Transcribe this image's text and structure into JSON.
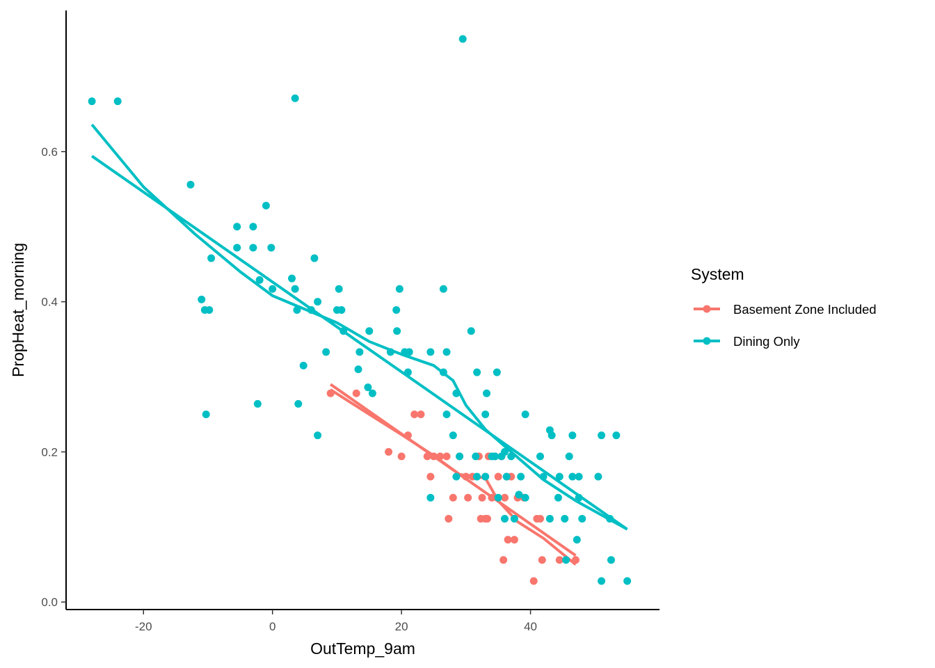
{
  "chart_data": {
    "type": "scatter",
    "title": "",
    "xlabel": "OutTemp_9am",
    "ylabel": "PropHeat_morning",
    "xlim": [
      -32,
      60
    ],
    "ylim": [
      -0.01,
      0.788
    ],
    "x_ticks": [
      -20,
      0,
      20,
      40
    ],
    "x_tick_labels": [
      "-20",
      "0",
      "20",
      "40"
    ],
    "y_ticks": [
      0.0,
      0.2,
      0.4,
      0.6
    ],
    "y_tick_labels": [
      "0.0",
      "0.2",
      "0.4",
      "0.6"
    ],
    "grid": false,
    "legend": {
      "title": "System",
      "placement": "right"
    },
    "series": [
      {
        "name": "Basement Zone Included",
        "color": "#F8766D",
        "points": [
          [
            9,
            0.278
          ],
          [
            13,
            0.278
          ],
          [
            18,
            0.2
          ],
          [
            20,
            0.194
          ],
          [
            21,
            0.222
          ],
          [
            22,
            0.25
          ],
          [
            23,
            0.25
          ],
          [
            24,
            0.194
          ],
          [
            24.5,
            0.167
          ],
          [
            25,
            0.194
          ],
          [
            26,
            0.194
          ],
          [
            27,
            0.194
          ],
          [
            27.3,
            0.111
          ],
          [
            28,
            0.139
          ],
          [
            29,
            0.194
          ],
          [
            30,
            0.167
          ],
          [
            30.3,
            0.139
          ],
          [
            31,
            0.167
          ],
          [
            32,
            0.194
          ],
          [
            32.5,
            0.139
          ],
          [
            33,
            0.111
          ],
          [
            33.5,
            0.194
          ],
          [
            33,
            0.167
          ],
          [
            34,
            0.139
          ],
          [
            34.5,
            0.194
          ],
          [
            35,
            0.167
          ],
          [
            35.5,
            0.194
          ],
          [
            36,
            0.139
          ],
          [
            36.3,
            0.167
          ],
          [
            36.5,
            0.083
          ],
          [
            37,
            0.167
          ],
          [
            37.5,
            0.083
          ],
          [
            38,
            0.139
          ],
          [
            39,
            0.139
          ],
          [
            40.5,
            0.028
          ],
          [
            41,
            0.111
          ],
          [
            41.5,
            0.111
          ],
          [
            41.8,
            0.056
          ],
          [
            44.5,
            0.056
          ],
          [
            47,
            0.056
          ],
          [
            35.8,
            0.056
          ],
          [
            32.3,
            0.111
          ],
          [
            33.3,
            0.111
          ]
        ],
        "fit_linear": [
          [
            9,
            0.29
          ],
          [
            47,
            0.062
          ]
        ],
        "fit_loess": [
          [
            9,
            0.283
          ],
          [
            15,
            0.25
          ],
          [
            20,
            0.223
          ],
          [
            25,
            0.195
          ],
          [
            29,
            0.17
          ],
          [
            33,
            0.165
          ],
          [
            35,
            0.135
          ],
          [
            38,
            0.107
          ],
          [
            42,
            0.085
          ],
          [
            47,
            0.05
          ]
        ]
      },
      {
        "name": "Dining Only",
        "color": "#00BFC4",
        "points": [
          [
            -28,
            0.667
          ],
          [
            -24,
            0.667
          ],
          [
            3.5,
            0.671
          ],
          [
            29.5,
            0.75
          ],
          [
            -12.7,
            0.556
          ],
          [
            -1,
            0.528
          ],
          [
            -5.5,
            0.5
          ],
          [
            -3,
            0.5
          ],
          [
            -5.5,
            0.472
          ],
          [
            -3,
            0.472
          ],
          [
            -0.2,
            0.472
          ],
          [
            -9.5,
            0.458
          ],
          [
            6.5,
            0.458
          ],
          [
            3,
            0.431
          ],
          [
            -2,
            0.429
          ],
          [
            3.5,
            0.417
          ],
          [
            0,
            0.417
          ],
          [
            10.3,
            0.417
          ],
          [
            19.7,
            0.417
          ],
          [
            26.5,
            0.417
          ],
          [
            -11,
            0.403
          ],
          [
            7,
            0.4
          ],
          [
            -10.5,
            0.389
          ],
          [
            -9.8,
            0.389
          ],
          [
            3.8,
            0.389
          ],
          [
            6,
            0.389
          ],
          [
            10,
            0.389
          ],
          [
            10.7,
            0.389
          ],
          [
            19.2,
            0.389
          ],
          [
            11,
            0.361
          ],
          [
            15,
            0.361
          ],
          [
            19.3,
            0.361
          ],
          [
            30.8,
            0.361
          ],
          [
            8.3,
            0.333
          ],
          [
            13.5,
            0.333
          ],
          [
            18.3,
            0.333
          ],
          [
            20.5,
            0.333
          ],
          [
            21.2,
            0.333
          ],
          [
            24.5,
            0.333
          ],
          [
            27,
            0.333
          ],
          [
            4.8,
            0.315
          ],
          [
            13.3,
            0.31
          ],
          [
            21,
            0.306
          ],
          [
            26.5,
            0.306
          ],
          [
            31.7,
            0.306
          ],
          [
            34.8,
            0.306
          ],
          [
            14.8,
            0.286
          ],
          [
            15.5,
            0.278
          ],
          [
            28.5,
            0.278
          ],
          [
            33.2,
            0.278
          ],
          [
            -2.3,
            0.264
          ],
          [
            4,
            0.264
          ],
          [
            -10.3,
            0.25
          ],
          [
            27,
            0.25
          ],
          [
            33,
            0.25
          ],
          [
            39.2,
            0.25
          ],
          [
            43,
            0.229
          ],
          [
            43.3,
            0.222
          ],
          [
            46.5,
            0.222
          ],
          [
            51,
            0.222
          ],
          [
            53.3,
            0.222
          ],
          [
            7,
            0.222
          ],
          [
            28,
            0.222
          ],
          [
            36,
            0.2
          ],
          [
            35.5,
            0.194
          ],
          [
            37,
            0.194
          ],
          [
            41.5,
            0.194
          ],
          [
            46,
            0.194
          ],
          [
            29,
            0.194
          ],
          [
            31.5,
            0.194
          ],
          [
            34,
            0.194
          ],
          [
            34.5,
            0.194
          ],
          [
            28.5,
            0.167
          ],
          [
            31.7,
            0.167
          ],
          [
            33,
            0.167
          ],
          [
            36.3,
            0.167
          ],
          [
            38.5,
            0.167
          ],
          [
            42,
            0.167
          ],
          [
            44.5,
            0.167
          ],
          [
            46.5,
            0.167
          ],
          [
            47.5,
            0.167
          ],
          [
            50.5,
            0.167
          ],
          [
            24.5,
            0.139
          ],
          [
            35,
            0.139
          ],
          [
            38.2,
            0.143
          ],
          [
            39.2,
            0.139
          ],
          [
            44.3,
            0.139
          ],
          [
            47.5,
            0.139
          ],
          [
            36,
            0.111
          ],
          [
            37.5,
            0.111
          ],
          [
            43,
            0.111
          ],
          [
            45.3,
            0.111
          ],
          [
            48,
            0.111
          ],
          [
            52.3,
            0.111
          ],
          [
            47.2,
            0.083
          ],
          [
            45.5,
            0.056
          ],
          [
            52.5,
            0.056
          ],
          [
            51,
            0.028
          ],
          [
            55,
            0.028
          ]
        ],
        "fit_linear": [
          [
            -28,
            0.594
          ],
          [
            55,
            0.097
          ]
        ],
        "fit_loess": [
          [
            -28,
            0.636
          ],
          [
            -20,
            0.553
          ],
          [
            -12,
            0.49
          ],
          [
            -5,
            0.44
          ],
          [
            0,
            0.408
          ],
          [
            5,
            0.39
          ],
          [
            10,
            0.372
          ],
          [
            15,
            0.347
          ],
          [
            20,
            0.33
          ],
          [
            25,
            0.315
          ],
          [
            28,
            0.295
          ],
          [
            30,
            0.262
          ],
          [
            33,
            0.23
          ],
          [
            37,
            0.2
          ],
          [
            42,
            0.163
          ],
          [
            47,
            0.135
          ],
          [
            55,
            0.097
          ]
        ]
      }
    ]
  }
}
